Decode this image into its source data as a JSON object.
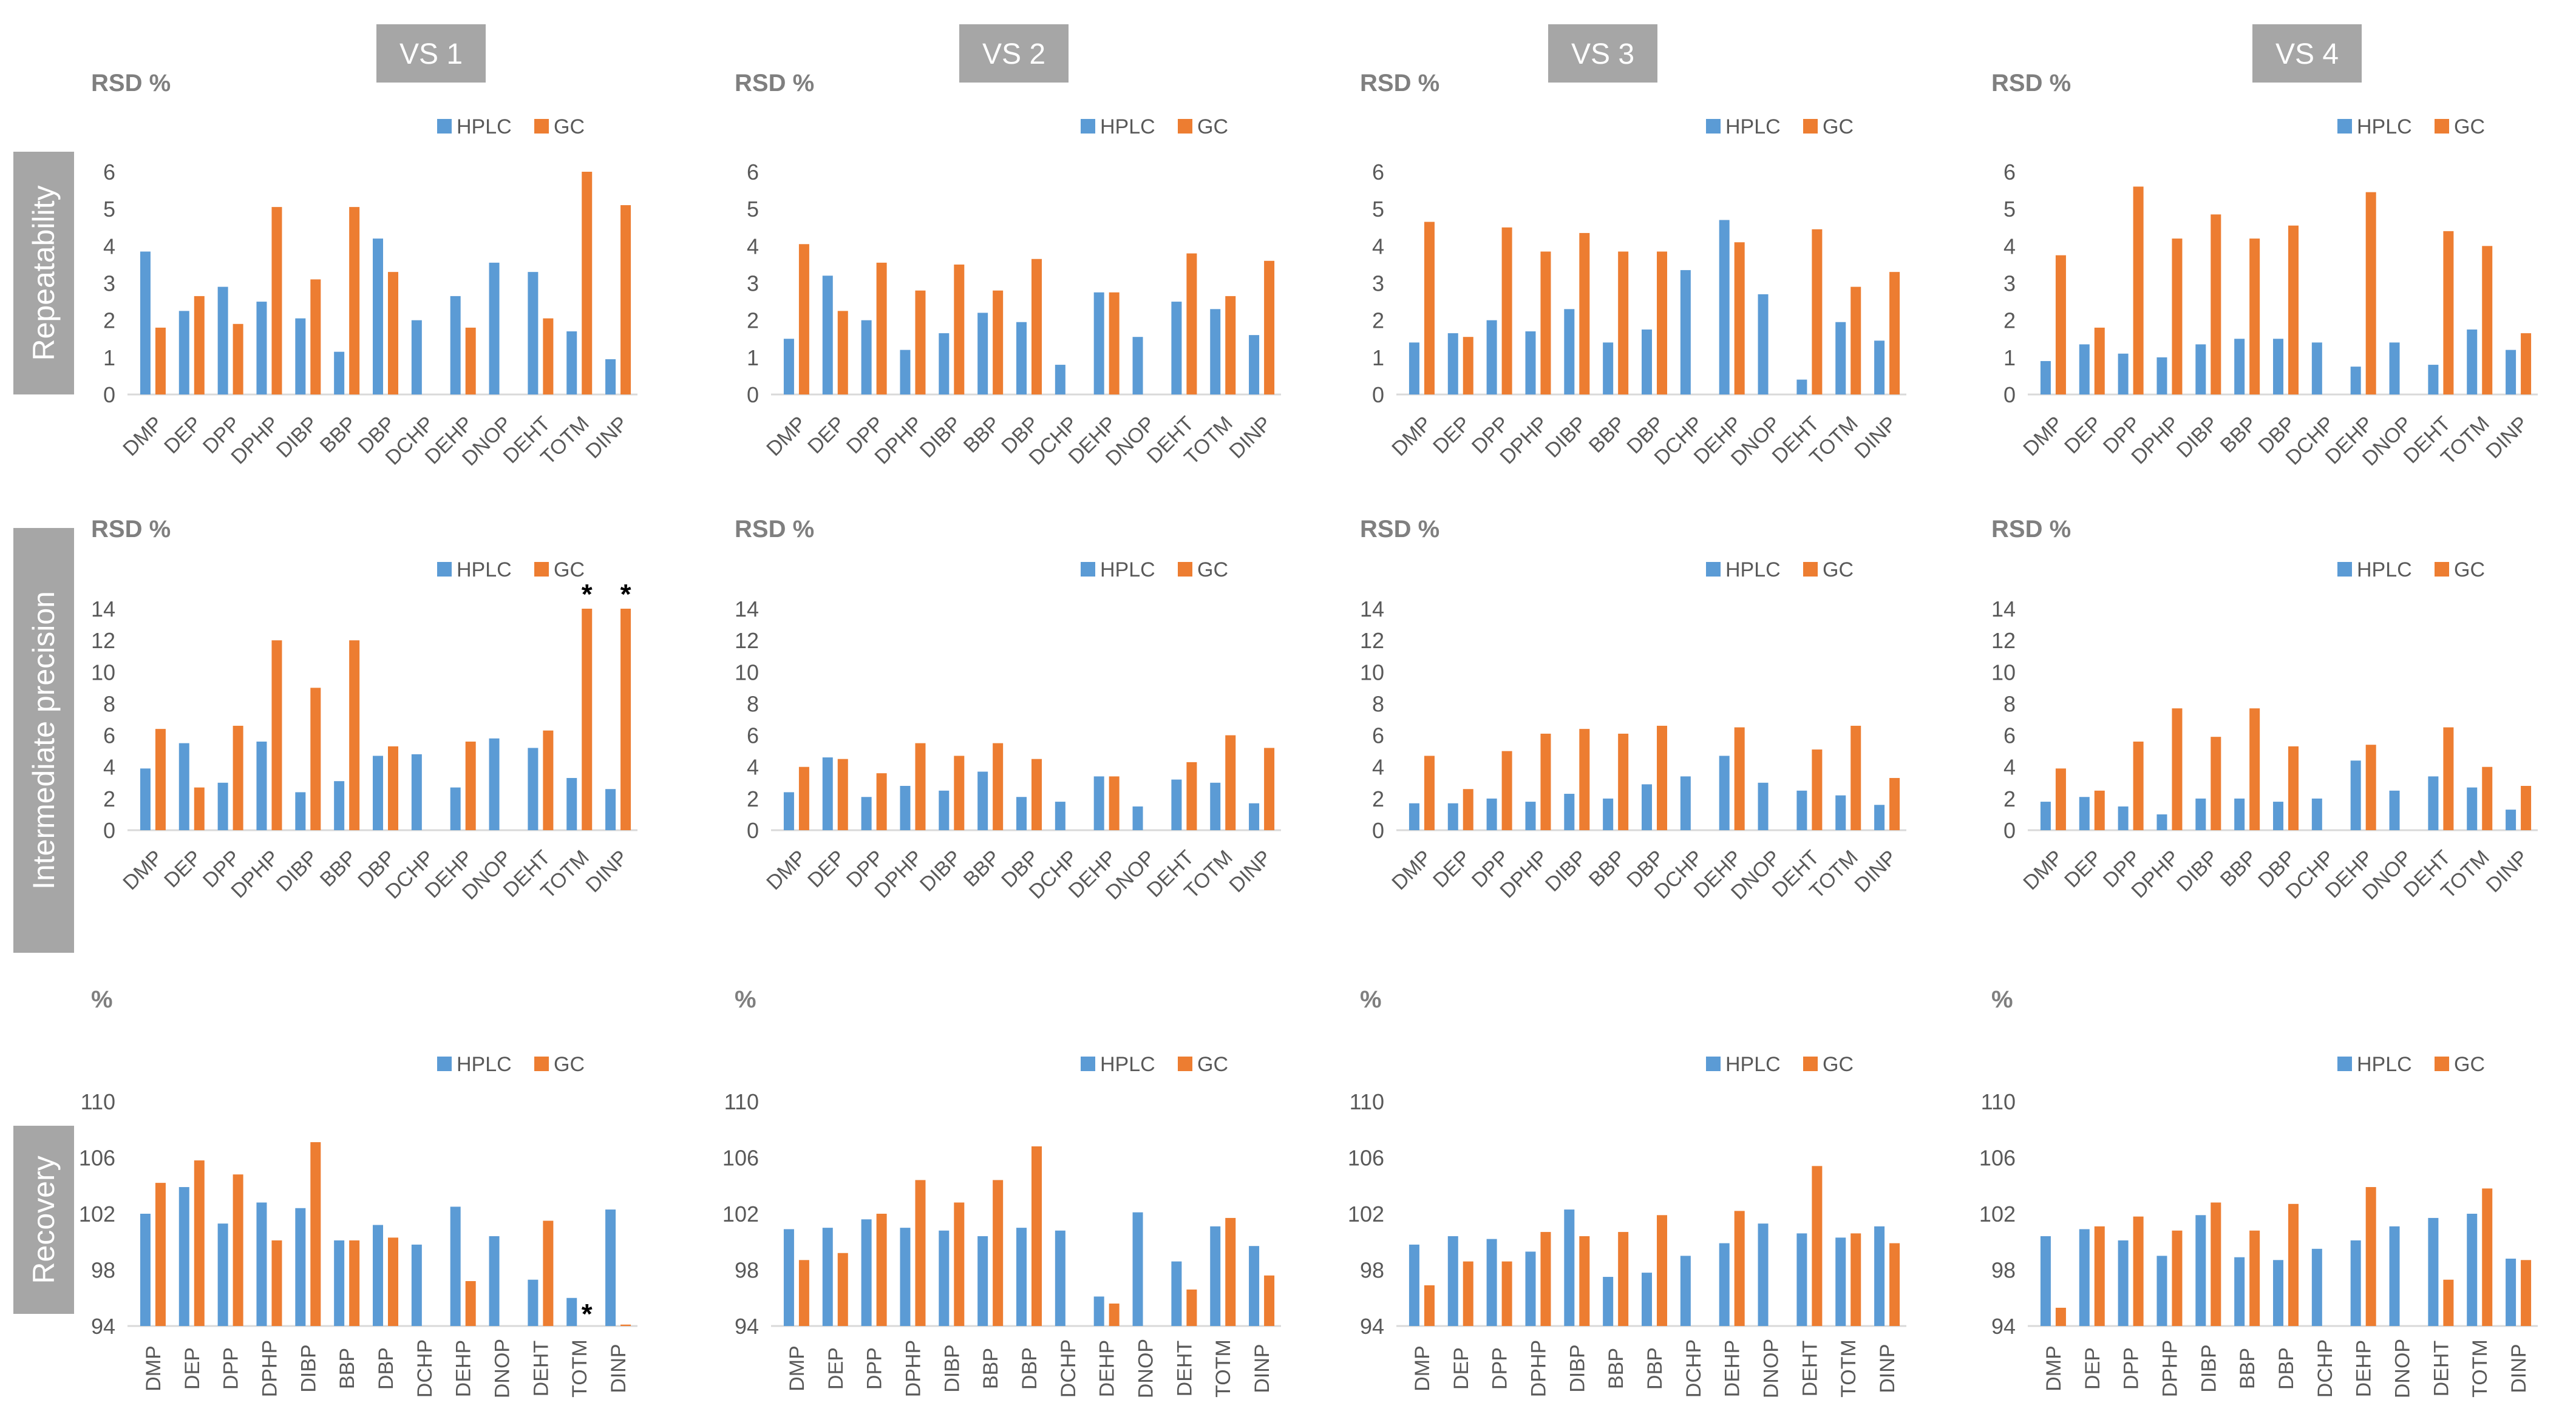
{
  "colors": {
    "hplc": "#5b9bd5",
    "gc": "#ed7d31",
    "header_bg": "#a6a6a6",
    "row_bg": "#a6a6a6",
    "axis": "#d9d9d9",
    "label": "#595959"
  },
  "columns": [
    "VS 1",
    "VS 2",
    "VS 3",
    "VS 4"
  ],
  "legend": {
    "hplc": "HPLC",
    "gc": "GC"
  },
  "categories": [
    "DMP",
    "DEP",
    "DPP",
    "DPHP",
    "DIBP",
    "BBP",
    "DBP",
    "DCHP",
    "DEHP",
    "DNOP",
    "DEHT",
    "TOTM",
    "DINP"
  ],
  "rows": [
    {
      "label": "Repeatability",
      "unit": "RSD %",
      "ylim": [
        0,
        6
      ],
      "yticks": [
        "0",
        "1",
        "2",
        "3",
        "4",
        "5",
        "6"
      ]
    },
    {
      "label": "Intermediate precision",
      "unit": "RSD %",
      "ylim": [
        0,
        14
      ],
      "yticks": [
        "0",
        "2",
        "4",
        "6",
        "8",
        "10",
        "12",
        "14"
      ]
    },
    {
      "label": "Recovery",
      "unit": "%",
      "ylim": [
        94,
        110
      ],
      "yticks": [
        "94",
        "98",
        "102",
        "106",
        "110"
      ]
    }
  ],
  "chart_data": [
    {
      "type": "bar",
      "row": "Repeatability",
      "column": "VS 1",
      "ylim": [
        0,
        6
      ],
      "categories": [
        "DMP",
        "DEP",
        "DPP",
        "DPHP",
        "DIBP",
        "BBP",
        "DBP",
        "DCHP",
        "DEHP",
        "DNOP",
        "DEHT",
        "TOTM",
        "DINP"
      ],
      "series": [
        {
          "name": "HPLC",
          "values": [
            3.85,
            2.25,
            2.9,
            2.5,
            2.05,
            1.15,
            4.2,
            2.0,
            2.65,
            3.55,
            3.3,
            1.7,
            0.95
          ]
        },
        {
          "name": "GC",
          "values": [
            1.8,
            2.65,
            1.9,
            5.05,
            3.1,
            5.05,
            3.3,
            null,
            1.8,
            null,
            2.05,
            6.0,
            5.1
          ]
        }
      ],
      "annotations": []
    },
    {
      "type": "bar",
      "row": "Repeatability",
      "column": "VS 2",
      "ylim": [
        0,
        6
      ],
      "categories": [
        "DMP",
        "DEP",
        "DPP",
        "DPHP",
        "DIBP",
        "BBP",
        "DBP",
        "DCHP",
        "DEHP",
        "DNOP",
        "DEHT",
        "TOTM",
        "DINP"
      ],
      "series": [
        {
          "name": "HPLC",
          "values": [
            1.5,
            3.2,
            2.0,
            1.2,
            1.65,
            2.2,
            1.95,
            0.8,
            2.75,
            1.55,
            2.5,
            2.3,
            1.6
          ]
        },
        {
          "name": "GC",
          "values": [
            4.05,
            2.25,
            3.55,
            2.8,
            3.5,
            2.8,
            3.65,
            null,
            2.75,
            null,
            3.8,
            2.65,
            3.6
          ]
        }
      ],
      "annotations": []
    },
    {
      "type": "bar",
      "row": "Repeatability",
      "column": "VS 3",
      "ylim": [
        0,
        6
      ],
      "categories": [
        "DMP",
        "DEP",
        "DPP",
        "DPHP",
        "DIBP",
        "BBP",
        "DBP",
        "DCHP",
        "DEHP",
        "DNOP",
        "DEHT",
        "TOTM",
        "DINP"
      ],
      "series": [
        {
          "name": "HPLC",
          "values": [
            1.4,
            1.65,
            2.0,
            1.7,
            2.3,
            1.4,
            1.75,
            3.35,
            4.7,
            2.7,
            0.4,
            1.95,
            1.45
          ]
        },
        {
          "name": "GC",
          "values": [
            4.65,
            1.55,
            4.5,
            3.85,
            4.35,
            3.85,
            3.85,
            null,
            4.1,
            null,
            4.45,
            2.9,
            3.3
          ]
        }
      ],
      "annotations": []
    },
    {
      "type": "bar",
      "row": "Repeatability",
      "column": "VS 4",
      "ylim": [
        0,
        6
      ],
      "categories": [
        "DMP",
        "DEP",
        "DPP",
        "DPHP",
        "DIBP",
        "BBP",
        "DBP",
        "DCHP",
        "DEHP",
        "DNOP",
        "DEHT",
        "TOTM",
        "DINP"
      ],
      "series": [
        {
          "name": "HPLC",
          "values": [
            0.9,
            1.35,
            1.1,
            1.0,
            1.35,
            1.5,
            1.5,
            1.4,
            0.75,
            1.4,
            0.8,
            1.75,
            1.2
          ]
        },
        {
          "name": "GC",
          "values": [
            3.75,
            1.8,
            5.6,
            4.2,
            4.85,
            4.2,
            4.55,
            null,
            5.45,
            null,
            4.4,
            4.0,
            1.65
          ]
        }
      ],
      "annotations": []
    },
    {
      "type": "bar",
      "row": "Intermediate precision",
      "column": "VS 1",
      "ylim": [
        0,
        14
      ],
      "categories": [
        "DMP",
        "DEP",
        "DPP",
        "DPHP",
        "DIBP",
        "BBP",
        "DBP",
        "DCHP",
        "DEHP",
        "DNOP",
        "DEHT",
        "TOTM",
        "DINP"
      ],
      "series": [
        {
          "name": "HPLC",
          "values": [
            3.9,
            5.5,
            3.0,
            5.6,
            2.4,
            3.1,
            4.7,
            4.8,
            2.7,
            5.8,
            5.2,
            3.3,
            2.6
          ]
        },
        {
          "name": "GC",
          "values": [
            6.4,
            2.7,
            6.6,
            12.0,
            9.0,
            12.0,
            5.3,
            null,
            5.6,
            null,
            6.3,
            14.0,
            14.0
          ]
        }
      ],
      "annotations": [
        {
          "category": "TOTM",
          "series": "GC",
          "text": "*"
        },
        {
          "category": "DINP",
          "series": "GC",
          "text": "*"
        }
      ]
    },
    {
      "type": "bar",
      "row": "Intermediate precision",
      "column": "VS 2",
      "ylim": [
        0,
        14
      ],
      "categories": [
        "DMP",
        "DEP",
        "DPP",
        "DPHP",
        "DIBP",
        "BBP",
        "DBP",
        "DCHP",
        "DEHP",
        "DNOP",
        "DEHT",
        "TOTM",
        "DINP"
      ],
      "series": [
        {
          "name": "HPLC",
          "values": [
            2.4,
            4.6,
            2.1,
            2.8,
            2.5,
            3.7,
            2.1,
            1.8,
            3.4,
            1.5,
            3.2,
            3.0,
            1.7
          ]
        },
        {
          "name": "GC",
          "values": [
            4.0,
            4.5,
            3.6,
            5.5,
            4.7,
            5.5,
            4.5,
            null,
            3.4,
            null,
            4.3,
            6.0,
            5.2
          ]
        }
      ],
      "annotations": []
    },
    {
      "type": "bar",
      "row": "Intermediate precision",
      "column": "VS 3",
      "ylim": [
        0,
        14
      ],
      "categories": [
        "DMP",
        "DEP",
        "DPP",
        "DPHP",
        "DIBP",
        "BBP",
        "DBP",
        "DCHP",
        "DEHP",
        "DNOP",
        "DEHT",
        "TOTM",
        "DINP"
      ],
      "series": [
        {
          "name": "HPLC",
          "values": [
            1.7,
            1.7,
            2.0,
            1.8,
            2.3,
            2.0,
            2.9,
            3.4,
            4.7,
            3.0,
            2.5,
            2.2,
            1.6
          ]
        },
        {
          "name": "GC",
          "values": [
            4.7,
            2.6,
            5.0,
            6.1,
            6.4,
            6.1,
            6.6,
            null,
            6.5,
            null,
            5.1,
            6.6,
            3.3
          ]
        }
      ],
      "annotations": []
    },
    {
      "type": "bar",
      "row": "Intermediate precision",
      "column": "VS 4",
      "ylim": [
        0,
        14
      ],
      "categories": [
        "DMP",
        "DEP",
        "DPP",
        "DPHP",
        "DIBP",
        "BBP",
        "DBP",
        "DCHP",
        "DEHP",
        "DNOP",
        "DEHT",
        "TOTM",
        "DINP"
      ],
      "series": [
        {
          "name": "HPLC",
          "values": [
            1.8,
            2.1,
            1.5,
            1.0,
            2.0,
            2.0,
            1.8,
            2.0,
            4.4,
            2.5,
            3.4,
            2.7,
            1.3
          ]
        },
        {
          "name": "GC",
          "values": [
            3.9,
            2.5,
            5.6,
            7.7,
            5.9,
            7.7,
            5.3,
            null,
            5.4,
            null,
            6.5,
            4.0,
            2.8
          ]
        }
      ],
      "annotations": []
    },
    {
      "type": "bar",
      "row": "Recovery",
      "column": "VS 1",
      "ylim": [
        94,
        110
      ],
      "categories": [
        "DMP",
        "DEP",
        "DPP",
        "DPHP",
        "DIBP",
        "BBP",
        "DBP",
        "DCHP",
        "DEHP",
        "DNOP",
        "DEHT",
        "TOTM",
        "DINP"
      ],
      "series": [
        {
          "name": "HPLC",
          "values": [
            102.0,
            103.9,
            101.3,
            102.8,
            102.4,
            100.1,
            101.2,
            99.8,
            102.5,
            100.4,
            97.3,
            96.0,
            102.3
          ]
        },
        {
          "name": "GC",
          "values": [
            104.2,
            105.8,
            104.8,
            100.1,
            107.1,
            100.1,
            100.3,
            null,
            97.2,
            null,
            101.5,
            null,
            94.1
          ]
        }
      ],
      "annotations": [
        {
          "category": "TOTM",
          "series": "GC",
          "text": "*"
        }
      ]
    },
    {
      "type": "bar",
      "row": "Recovery",
      "column": "VS 2",
      "ylim": [
        94,
        110
      ],
      "categories": [
        "DMP",
        "DEP",
        "DPP",
        "DPHP",
        "DIBP",
        "BBP",
        "DBP",
        "DCHP",
        "DEHP",
        "DNOP",
        "DEHT",
        "TOTM",
        "DINP"
      ],
      "series": [
        {
          "name": "HPLC",
          "values": [
            100.9,
            101.0,
            101.6,
            101.0,
            100.8,
            100.4,
            101.0,
            100.8,
            96.1,
            102.1,
            98.6,
            101.1,
            99.7
          ]
        },
        {
          "name": "GC",
          "values": [
            98.7,
            99.2,
            102.0,
            104.4,
            102.8,
            104.4,
            106.8,
            null,
            95.6,
            null,
            96.6,
            101.7,
            97.6
          ]
        }
      ],
      "annotations": []
    },
    {
      "type": "bar",
      "row": "Recovery",
      "column": "VS 3",
      "ylim": [
        94,
        110
      ],
      "categories": [
        "DMP",
        "DEP",
        "DPP",
        "DPHP",
        "DIBP",
        "BBP",
        "DBP",
        "DCHP",
        "DEHP",
        "DNOP",
        "DEHT",
        "TOTM",
        "DINP"
      ],
      "series": [
        {
          "name": "HPLC",
          "values": [
            99.8,
            100.4,
            100.2,
            99.3,
            102.3,
            97.5,
            97.8,
            99.0,
            99.9,
            101.3,
            100.6,
            100.3,
            101.1
          ]
        },
        {
          "name": "GC",
          "values": [
            96.9,
            98.6,
            98.6,
            100.7,
            100.4,
            100.7,
            101.9,
            null,
            102.2,
            null,
            105.4,
            100.6,
            99.9
          ]
        }
      ],
      "annotations": []
    },
    {
      "type": "bar",
      "row": "Recovery",
      "column": "VS 4",
      "ylim": [
        94,
        110
      ],
      "categories": [
        "DMP",
        "DEP",
        "DPP",
        "DPHP",
        "DIBP",
        "BBP",
        "DBP",
        "DCHP",
        "DEHP",
        "DNOP",
        "DEHT",
        "TOTM",
        "DINP"
      ],
      "series": [
        {
          "name": "HPLC",
          "values": [
            100.4,
            100.9,
            100.1,
            99.0,
            101.9,
            98.9,
            98.7,
            99.5,
            100.1,
            101.1,
            101.7,
            102.0,
            98.8
          ]
        },
        {
          "name": "GC",
          "values": [
            95.3,
            101.1,
            101.8,
            100.8,
            102.8,
            100.8,
            102.7,
            null,
            103.9,
            null,
            97.3,
            103.8,
            98.7
          ]
        }
      ],
      "annotations": []
    }
  ]
}
